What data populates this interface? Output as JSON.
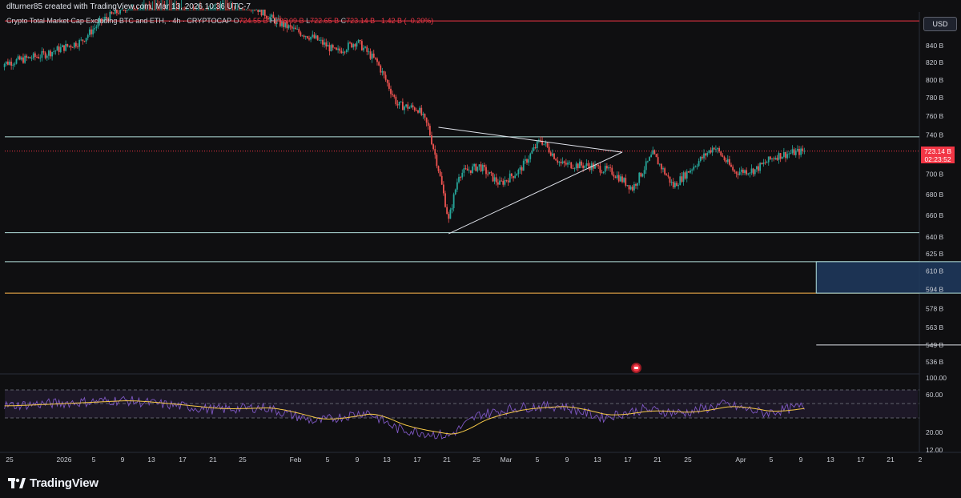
{
  "header": {
    "attribution": "dlturner85 created with TradingView.com, Mar 13, 2026 10:36 UTC-7",
    "symbol_title": "Crypto Total Market Cap Excluding BTC and ETH, · 4h · CRYPTOCAP",
    "ohlc": {
      "o_label": "O",
      "o": "724.55 B",
      "h_label": "H",
      "h": "726.09 B",
      "l_label": "L",
      "l": "722.65 B",
      "c_label": "C",
      "c": "723.14 B",
      "change": "−1.42 B (−0.20%)"
    },
    "currency": "USD"
  },
  "price_tag": {
    "price": "723.14 B",
    "countdown": "02:23:52"
  },
  "colors": {
    "background": "#0f0f11",
    "up": "#26a69a",
    "down": "#ef5350",
    "rsi": "#7e57c2",
    "rsi_ma": "#f7c948",
    "price_line": "#f23645",
    "zone_fill": "#1e3a5f"
  },
  "chart_data": {
    "type": "candlestick",
    "title": "Crypto Total Market Cap Excluding BTC and ETH",
    "interval": "4h",
    "y_scale": "log",
    "ylim": [
      525,
      880
    ],
    "y_ticks": [
      "840 B",
      "820 B",
      "800 B",
      "780 B",
      "760 B",
      "740 B",
      "720 B",
      "700 B",
      "680 B",
      "660 B",
      "640 B",
      "625 B",
      "610 B",
      "594 B",
      "578 B",
      "563 B",
      "549 B",
      "536 B"
    ],
    "x_ticks": [
      "25",
      "2026",
      "5",
      "9",
      "13",
      "17",
      "21",
      "25",
      "Feb",
      "5",
      "9",
      "13",
      "17",
      "21",
      "25",
      "Mar",
      "5",
      "9",
      "13",
      "17",
      "21",
      "25",
      "Apr",
      "5",
      "9",
      "13",
      "17",
      "21",
      "2"
    ],
    "series": [
      {
        "name": "price",
        "keypoints": [
          [
            "Dec 24",
            818
          ],
          [
            "Dec 28",
            828
          ],
          [
            "Jan 1",
            845
          ],
          [
            "Jan 3",
            870
          ],
          [
            "Jan 6",
            892
          ],
          [
            "Jan 9",
            905
          ],
          [
            "Jan 12",
            890
          ],
          [
            "Jan 15",
            900
          ],
          [
            "Jan 18",
            888
          ],
          [
            "Jan 20",
            870
          ],
          [
            "Jan 22",
            858
          ],
          [
            "Jan 24",
            848
          ],
          [
            "Jan 26",
            832
          ],
          [
            "Jan 28",
            845
          ],
          [
            "Jan 30",
            820
          ],
          [
            "Feb 1",
            772
          ],
          [
            "Feb 3",
            768
          ],
          [
            "Feb 4",
            748
          ],
          [
            "Feb 5",
            705
          ],
          [
            "Feb 6",
            655
          ],
          [
            "Feb 7",
            700
          ],
          [
            "Feb 9",
            708
          ],
          [
            "Feb 11",
            690
          ],
          [
            "Feb 13",
            704
          ],
          [
            "Feb 15",
            735
          ],
          [
            "Feb 17",
            710
          ],
          [
            "Feb 20",
            708
          ],
          [
            "Feb 22",
            702
          ],
          [
            "Feb 24",
            686
          ],
          [
            "Feb 26",
            720
          ],
          [
            "Feb 28",
            688
          ],
          [
            "Mar 2",
            708
          ],
          [
            "Mar 4",
            728
          ],
          [
            "Mar 6",
            702
          ],
          [
            "Mar 8",
            704
          ],
          [
            "Mar 10",
            718
          ],
          [
            "Mar 12",
            722
          ],
          [
            "Mar 13",
            723.14
          ]
        ]
      },
      {
        "name": "RSI",
        "ylim": [
          0,
          100
        ],
        "levels": [
          70,
          60,
          30
        ],
        "keypoints": [
          [
            "Dec 24",
            60
          ],
          [
            "Jan 5",
            68
          ],
          [
            "Jan 14",
            55
          ],
          [
            "Jan 19",
            58
          ],
          [
            "Jan 24",
            38
          ],
          [
            "Jan 29",
            52
          ],
          [
            "Feb 1",
            28
          ],
          [
            "Feb 6",
            18
          ],
          [
            "Feb 9",
            48
          ],
          [
            "Feb 13",
            58
          ],
          [
            "Feb 17",
            60
          ],
          [
            "Feb 21",
            44
          ],
          [
            "Feb 25",
            55
          ],
          [
            "Mar 1",
            50
          ],
          [
            "Mar 5",
            62
          ],
          [
            "Mar 9",
            50
          ],
          [
            "Mar 13",
            60
          ]
        ]
      }
    ],
    "y_axis_rsi_ticks": [
      "100.00",
      "60.00",
      "20.00",
      "12.00"
    ],
    "horizontal_levels": [
      {
        "price": 870,
        "color": "#f23645"
      },
      {
        "price": 738,
        "color": "#b2dfdb"
      },
      {
        "price": 644,
        "color": "#b2dfdb"
      },
      {
        "price": 618,
        "color": "#b2dfdb"
      },
      {
        "price": 591,
        "color": "#ffb74d"
      }
    ],
    "triangle": {
      "upper": [
        [
          "Feb 5",
          748
        ],
        [
          "Feb 23",
          722
        ]
      ],
      "lower": [
        [
          "Feb 6",
          643
        ],
        [
          "Feb 23",
          722
        ]
      ]
    },
    "zone": {
      "from": "Mar 14",
      "to": "Apr 17",
      "top": 618,
      "bottom": 591
    },
    "target_line": {
      "from": "Mar 14",
      "to": "Apr 17",
      "price": 549
    }
  },
  "footer": {
    "brand": "TradingView"
  }
}
